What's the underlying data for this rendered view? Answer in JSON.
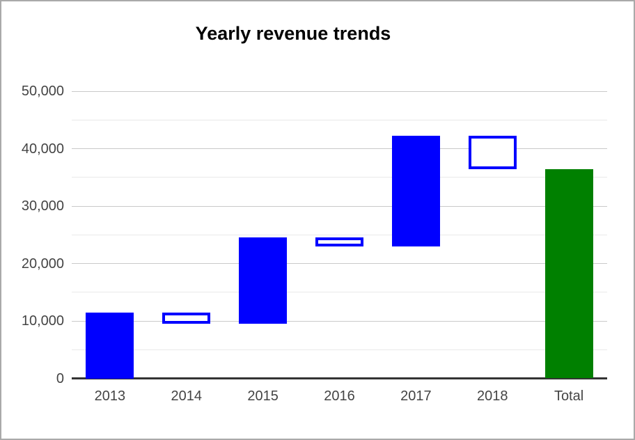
{
  "window": {
    "background_color": "#ffffff",
    "frame_border_color": "#a9a9a9"
  },
  "chart_data": {
    "type": "bar",
    "subtype": "waterfall",
    "title": "Yearly revenue trends",
    "xlabel": "",
    "ylabel": "",
    "legend": "none",
    "grid": true,
    "categories": [
      "2013",
      "2014",
      "2015",
      "2016",
      "2017",
      "2018",
      "Total"
    ],
    "bars": [
      {
        "label": "2013",
        "from": 0,
        "to": 11500,
        "kind": "increase"
      },
      {
        "label": "2014",
        "from": 11500,
        "to": 9500,
        "kind": "decrease"
      },
      {
        "label": "2015",
        "from": 9500,
        "to": 24500,
        "kind": "increase"
      },
      {
        "label": "2016",
        "from": 24500,
        "to": 23000,
        "kind": "decrease"
      },
      {
        "label": "2017",
        "from": 23000,
        "to": 42200,
        "kind": "increase"
      },
      {
        "label": "2018",
        "from": 42200,
        "to": 36400,
        "kind": "decrease"
      },
      {
        "label": "Total",
        "from": 0,
        "to": 36400,
        "kind": "total"
      }
    ],
    "y_axis": {
      "range": [
        0,
        50000
      ],
      "major_ticks": [
        {
          "value": 0,
          "label": "0"
        },
        {
          "value": 10000,
          "label": "10,000"
        },
        {
          "value": 20000,
          "label": "20,000"
        },
        {
          "value": 30000,
          "label": "30,000"
        },
        {
          "value": 40000,
          "label": "40,000"
        },
        {
          "value": 50000,
          "label": "50,000"
        }
      ],
      "minor_tick_values": [
        5000,
        15000,
        25000,
        35000,
        45000
      ]
    },
    "colors": {
      "increase_fill": "#0000ff",
      "decrease_fill": "#ffffff",
      "decrease_stroke": "#0000ff",
      "total_fill": "#008000",
      "axis_line": "#333333",
      "major_gridline": "#c9c9c9",
      "minor_gridline": "#e9e9e9",
      "tick_text": "#444444",
      "title_text": "#000000"
    }
  }
}
